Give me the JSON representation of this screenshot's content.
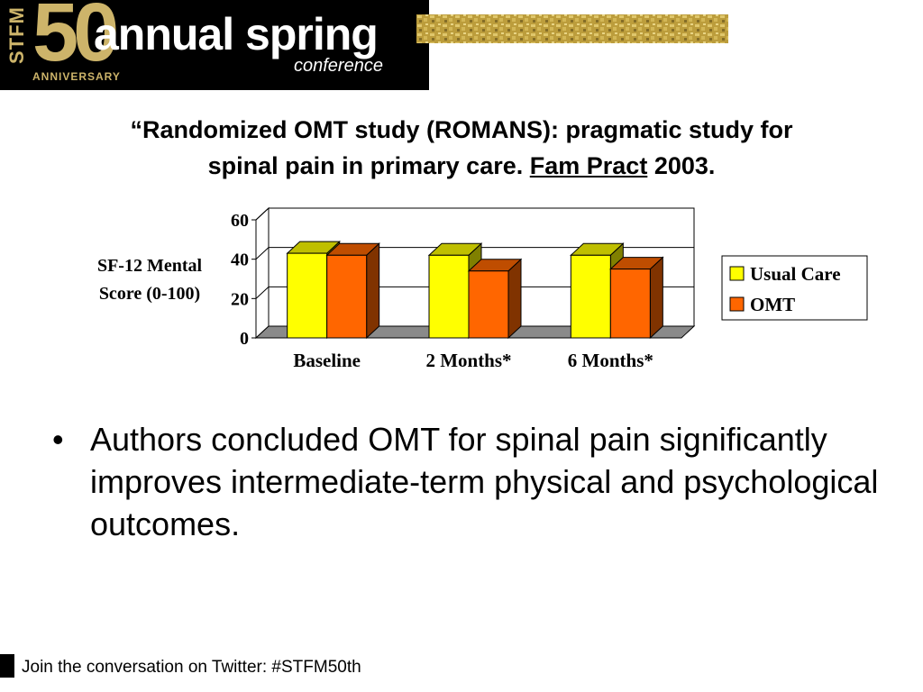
{
  "banner": {
    "stfm": "STFM",
    "fifty": "50",
    "anniversary": "ANNIVERSARY",
    "annual": "annual spring",
    "conference": "conference"
  },
  "slide": {
    "title_line1": "“Randomized OMT study (ROMANS): pragmatic study for",
    "title_line2_pre": "spinal pain in primary care.  ",
    "title_journal": "Fam Pract",
    "title_line2_post": " 2003.",
    "bullet_mark": "•",
    "bullet_text": "Authors concluded OMT for spinal pain significantly improves intermediate-term physical and psychological outcomes."
  },
  "footer": {
    "text": "Join the conversation on Twitter: #STFM50th"
  },
  "colors": {
    "usual_care": "#ffff00",
    "omt": "#ff6600",
    "banner_gold": "#cdb46a"
  },
  "chart_data": {
    "type": "bar",
    "categories": [
      "Baseline",
      "2 Months*",
      "6 Months*"
    ],
    "series": [
      {
        "name": "Usual Care",
        "values": [
          43,
          42,
          42
        ]
      },
      {
        "name": "OMT",
        "values": [
          42,
          34,
          35
        ]
      }
    ],
    "ylabel_line1": "SF-12 Mental",
    "ylabel_line2": "Score (0-100)",
    "yticks": [
      "0",
      "20",
      "40",
      "60"
    ],
    "ylim": [
      0,
      60
    ],
    "grid": true,
    "legend": "right",
    "style": "3d"
  }
}
